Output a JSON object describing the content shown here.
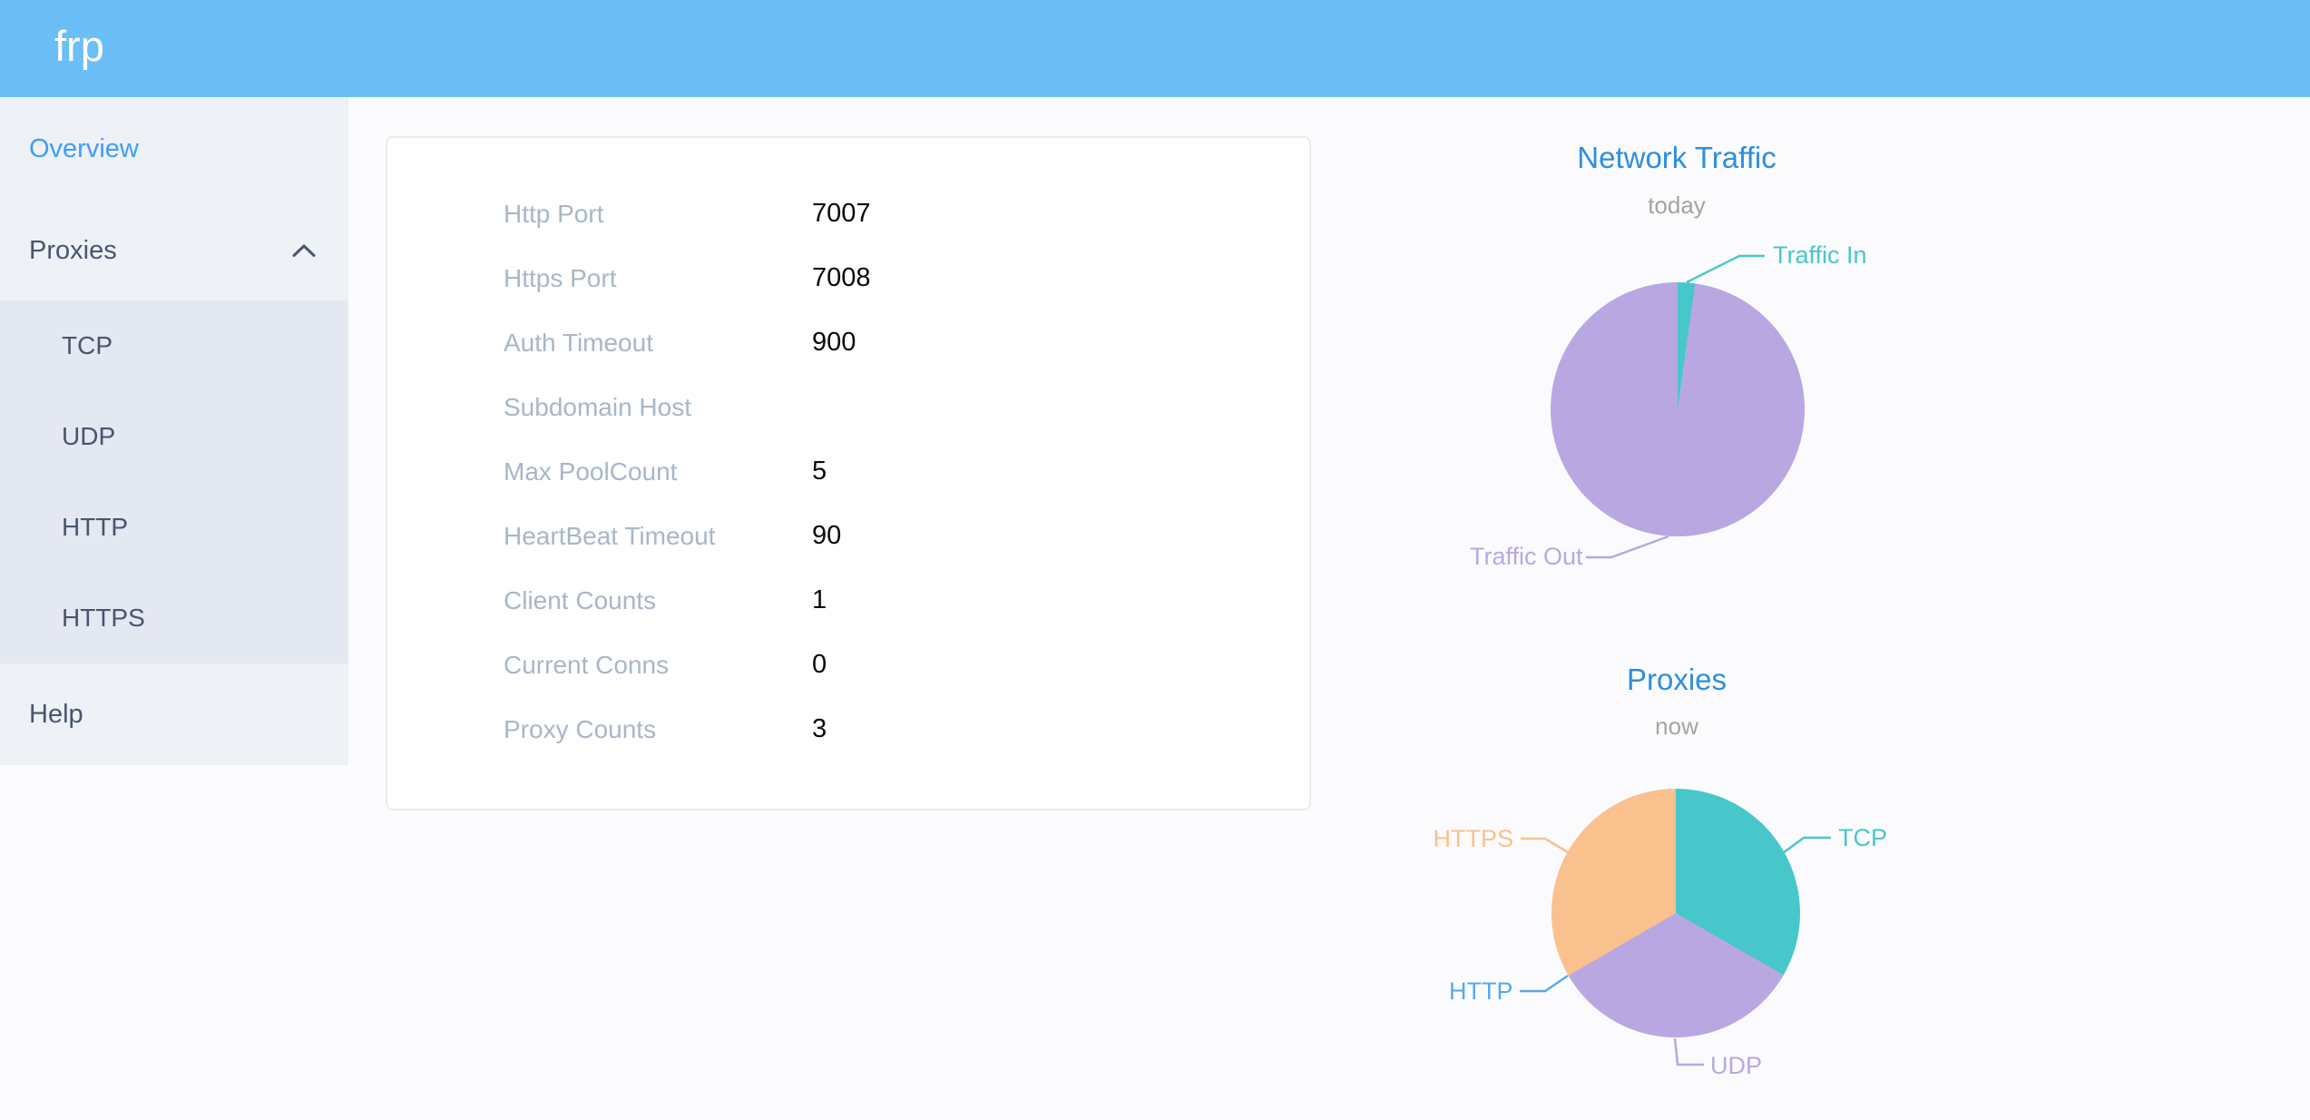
{
  "app": {
    "logo": "frp"
  },
  "colors": {
    "header_bg": "#6cbef7",
    "sidebar_bg": "#eef1f6",
    "submenu_bg": "#e4e8f1",
    "active_menu_blue": "#3f9ef7",
    "menu_text": "#48566d",
    "chart_title_blue": "#2e8ede",
    "subtitle_gray": "#a3a3a3",
    "label_gray": "#a9b6c8",
    "teal": "#48c7cb",
    "purple": "#b9a7e2",
    "orange": "#f9c18d",
    "http_blue": "#58a8ef"
  },
  "sidebar": {
    "overview": {
      "label": "Overview",
      "active": true
    },
    "proxies": {
      "label": "Proxies",
      "expanded": true
    },
    "proxies_submenu": [
      "TCP",
      "UDP",
      "HTTP",
      "HTTPS"
    ],
    "help": {
      "label": "Help"
    }
  },
  "server_info": {
    "rows": [
      {
        "label": "Http Port",
        "value": "7007"
      },
      {
        "label": "Https Port",
        "value": "7008"
      },
      {
        "label": "Auth Timeout",
        "value": "900"
      },
      {
        "label": "Subdomain Host",
        "value": ""
      },
      {
        "label": "Max PoolCount",
        "value": "5"
      },
      {
        "label": "HeartBeat Timeout",
        "value": "90"
      },
      {
        "label": "Client Counts",
        "value": "1"
      },
      {
        "label": "Current Conns",
        "value": "0"
      },
      {
        "label": "Proxy Counts",
        "value": "3"
      }
    ]
  },
  "chart_data": [
    {
      "type": "pie",
      "title": "Network Traffic",
      "subtitle": "today",
      "start_angle_deg": 0,
      "direction": "clockwise",
      "legend_position": "outside-leader-lines",
      "series": [
        {
          "name": "Traffic In",
          "percent": 2.2,
          "color": "#48c7cb"
        },
        {
          "name": "Traffic Out",
          "percent": 97.8,
          "color": "#b9a7e2"
        }
      ]
    },
    {
      "type": "pie",
      "title": "Proxies",
      "subtitle": "now",
      "start_angle_deg": 0,
      "direction": "clockwise",
      "legend_position": "outside-leader-lines",
      "series": [
        {
          "name": "TCP",
          "percent": 33.3,
          "color": "#48c7cb"
        },
        {
          "name": "UDP",
          "percent": 33.3,
          "color": "#b9a7e2"
        },
        {
          "name": "HTTP",
          "percent": 0,
          "color": "#58a8ef"
        },
        {
          "name": "HTTPS",
          "percent": 33.4,
          "color": "#f9c18d"
        }
      ]
    }
  ]
}
